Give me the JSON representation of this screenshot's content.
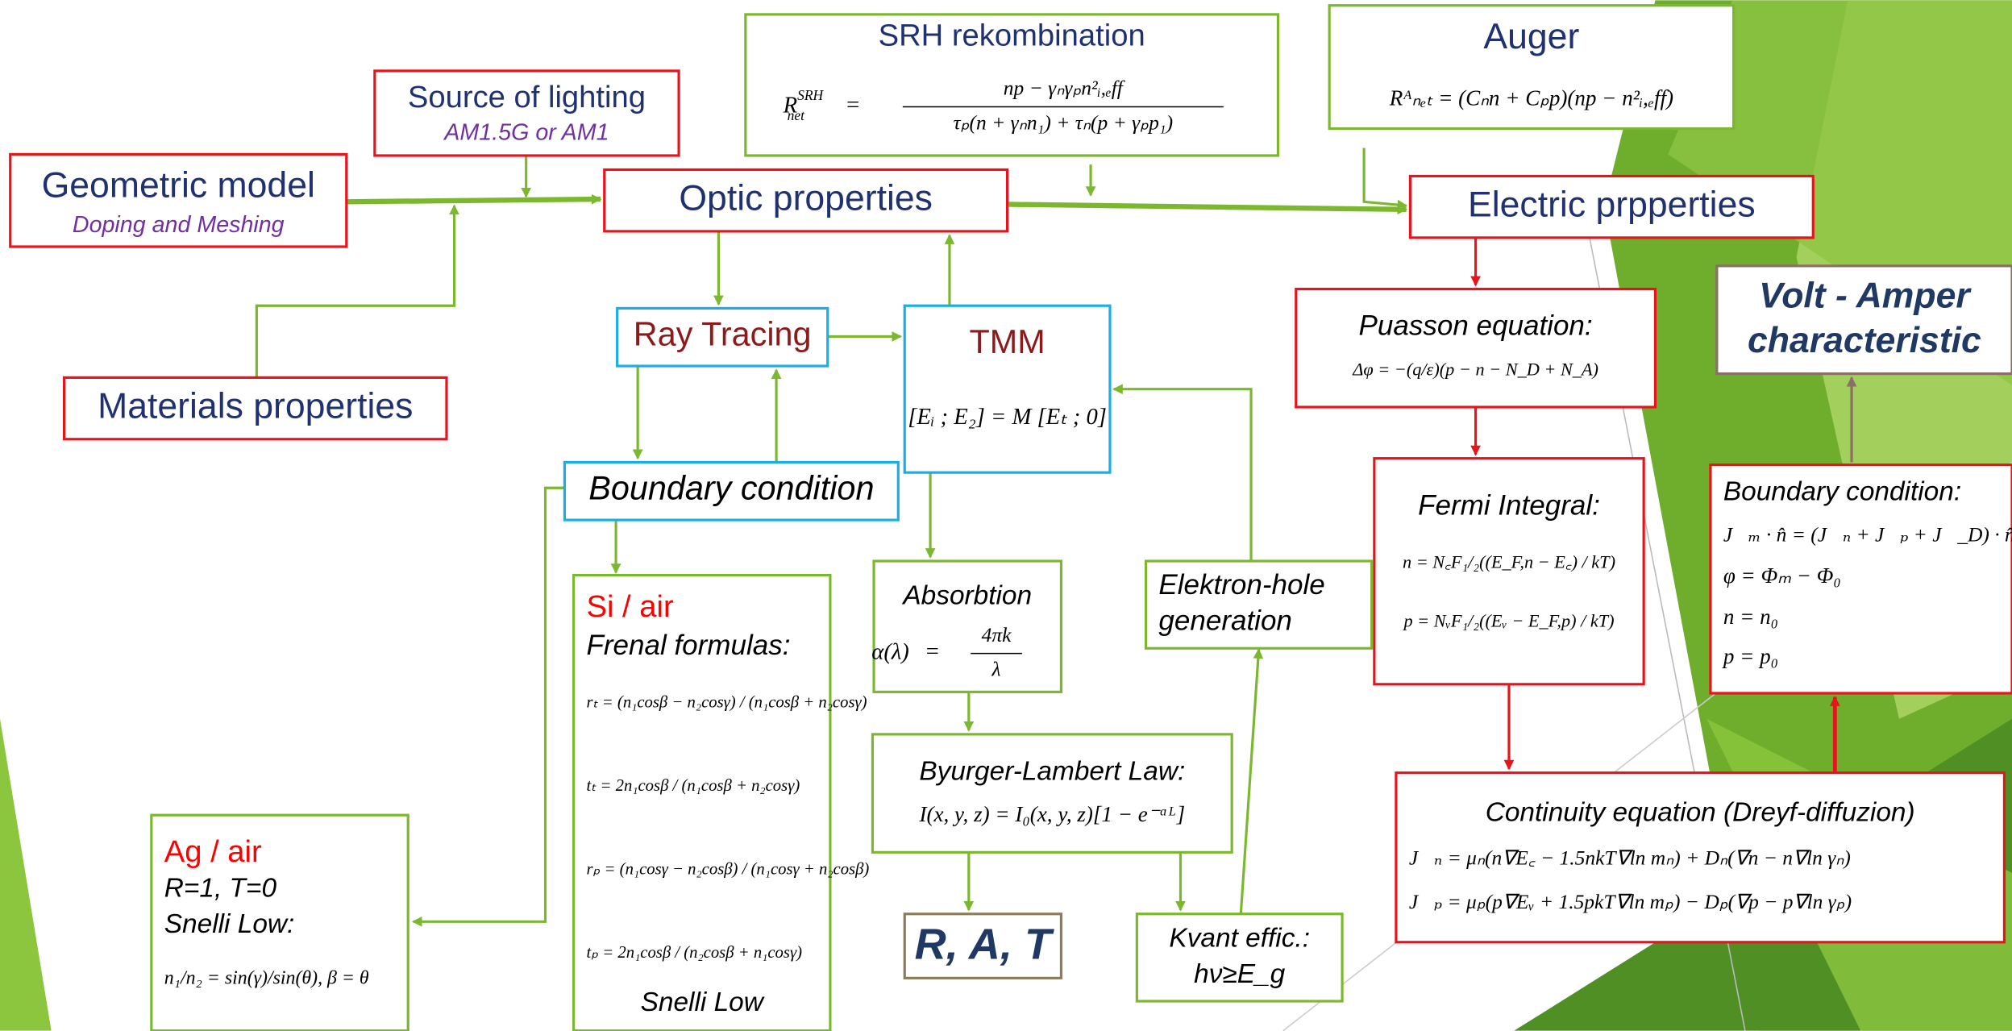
{
  "nodes": [
    {
      "title": "Geometric model",
      "subtitle": "Doping and Meshing"
    },
    {
      "title": "Source of lighting",
      "subtitle": "AM1.5G or AM1"
    },
    {
      "title": "SRH rekombination",
      "formula": {
        "lhs": "R",
        "sup": "SRH",
        "sub": "net",
        "eq": "=",
        "numerator": "np − γₙγₚn²ᵢ,ₑff",
        "denominator": "τₚ(n + γₙn₁) + τₙ(p + γₚp₁)"
      }
    },
    {
      "title": "Auger",
      "lines": [
        "Rᴬₙₑₜ = (Cₙn + Cₚp)(np − n²ᵢ,ₑff)"
      ]
    },
    {
      "title": "Optic properties"
    },
    {
      "title": "Electric prpperties"
    },
    {
      "title": "Materials properties"
    },
    {
      "title": "Ray Tracing"
    },
    {
      "title": "TMM",
      "lines": [
        "[Eᵢ ; E₂] = M [Eₜ ; 0]"
      ]
    },
    {
      "title": "Boundary condition"
    },
    {
      "title": "Puasson equation:",
      "lines": [
        "Δφ = −(q/ε)(p − n − N_D + N_A)"
      ]
    },
    {
      "lines": [
        "Volt - Amper",
        "characteristic"
      ]
    },
    {
      "title": "Fermi Integral:",
      "lines": [
        "n = N꜀F₁/₂((E_F,n − E꜀) / kT)",
        "p = NᵥF₁/₂((Eᵥ − E_F,p) / kT)"
      ]
    },
    {
      "title": "Boundary condition:",
      "lines": [
        "J⃗ₘ · n̂ = (J⃗ₙ + J⃗ₚ + J⃗_D) · n̂",
        "φ = Φₘ − Φ₀",
        "n = n₀",
        "p = p₀"
      ]
    },
    {
      "title": "Absorbtion",
      "formula": {
        "lhs": "α(λ)",
        "eq": "=",
        "numerator": "4πk",
        "denominator": "λ"
      }
    },
    {
      "lines": [
        "Elektron-hole",
        "generation"
      ]
    },
    {
      "title": "Si / air",
      "subtitle": "Frenal formulas:",
      "lines": [
        "rₜ = (n₁cosβ − n₂cosγ) / (n₁cosβ + n₂cosγ)",
        "tₜ = 2n₁cosβ / (n₁cosβ + n₂cosγ)",
        "rₚ = (n₁cosγ − n₂cosβ) / (n₁cosγ + n₂cosβ)",
        "tₚ = 2n₁cosβ / (n₂cosβ + n₁cosγ)"
      ],
      "footer": "Snelli Low"
    },
    {
      "title": "Byurger-Lambert Law:",
      "lines": [
        "I(x, y, z) = I₀(x, y, z)[1 − e⁻ᵅᴸ]"
      ]
    },
    {
      "title": "Continuity equation (Dreyf-diffuzion)",
      "lines": [
        "J⃗ₙ = μₙ(n∇E꜀ − 1.5nkT∇ln mₙ) + Dₙ(∇n − n∇ln γₙ)",
        "J⃗ₚ = μₚ(p∇Eᵥ + 1.5pkT∇ln mₚ) − Dₚ(∇p − p∇ln γₚ)"
      ]
    },
    {
      "title": "Ag / air",
      "lines": [
        "R=1, T=0",
        "Snelli Low:",
        "n₁/n₂ = sin(γ)/sin(θ),   β = θ"
      ]
    },
    {
      "title": "R, A, T"
    },
    {
      "lines": [
        "Kvant effic.:",
        "hν≥E_g"
      ]
    }
  ]
}
